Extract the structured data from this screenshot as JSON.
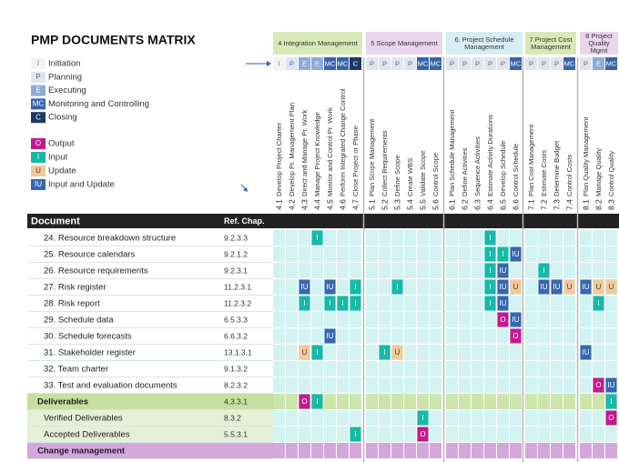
{
  "header": {
    "title": "PMP DOCUMENTS MATRIX"
  },
  "process_legend": [
    {
      "code": "I",
      "label": "Initiation",
      "color": "#f3f3f3",
      "text_color": "#777"
    },
    {
      "code": "P",
      "label": "Planning",
      "color": "#dfe4ef",
      "text_color": "#667"
    },
    {
      "code": "E",
      "label": "Executing",
      "color": "#8eaad8",
      "text_color": "#ffffff"
    },
    {
      "code": "MC",
      "label": "Monitoring and Controlling",
      "color": "#3664aa",
      "text_color": "#ffffff"
    },
    {
      "code": "C",
      "label": "Closing",
      "color": "#1f3864",
      "text_color": "#ffffff"
    }
  ],
  "io_legend": [
    {
      "code": "O",
      "label": "Output",
      "color": "#c21a90",
      "text_color": "#ffffff"
    },
    {
      "code": "I",
      "label": "Input",
      "color": "#17b9a8",
      "text_color": "#ffffff"
    },
    {
      "code": "U",
      "label": "Update",
      "color": "#f3c99b",
      "text_color": "#444"
    },
    {
      "code": "IU",
      "label": "Input and Update",
      "color": "#3667b0",
      "text_color": "#ffffff"
    }
  ],
  "groups": [
    {
      "title": "4 Integration Management",
      "color": "#d8e9b8",
      "processes": [
        {
          "id": "4.1",
          "name": "Develop Project Charter",
          "group": "I"
        },
        {
          "id": "4.2",
          "name": "Develop Pr. Management Plan",
          "group": "P"
        },
        {
          "id": "4.3",
          "name": "Direct and Manage Pr. Work",
          "group": "E"
        },
        {
          "id": "4.4",
          "name": "Manage Project Knowledge",
          "group": "E"
        },
        {
          "id": "4.5",
          "name": "Monitor and Control Pr. Work",
          "group": "MC"
        },
        {
          "id": "4.6",
          "name": "Perform Integrated Change Control",
          "group": "MC"
        },
        {
          "id": "4.7",
          "name": "Close Project or Phase",
          "group": "C"
        }
      ]
    },
    {
      "title": "5 Scope Management",
      "color": "#e9d5ed",
      "processes": [
        {
          "id": "5.1",
          "name": "Plan Scope Management",
          "group": "P"
        },
        {
          "id": "5.2",
          "name": "Collect Requirements",
          "group": "P"
        },
        {
          "id": "5.3",
          "name": "Define Scope",
          "group": "P"
        },
        {
          "id": "5.4",
          "name": "Create WBS",
          "group": "P"
        },
        {
          "id": "5.5",
          "name": "Validate Scope",
          "group": "MC"
        },
        {
          "id": "5.6",
          "name": "Control Scope",
          "group": "MC"
        }
      ]
    },
    {
      "title": "6. Project Schedule Management",
      "color": "#d5eef3",
      "processes": [
        {
          "id": "6.1",
          "name": "Plan Schedule Management",
          "group": "P"
        },
        {
          "id": "6.2",
          "name": "Define Activities",
          "group": "P"
        },
        {
          "id": "6.3",
          "name": "Sequence Activities",
          "group": "P"
        },
        {
          "id": "6.4",
          "name": "Estimate Activity Durations",
          "group": "P"
        },
        {
          "id": "6.5",
          "name": "Develop Schedule",
          "group": "P"
        },
        {
          "id": "6.6",
          "name": "Control Schedule",
          "group": "MC"
        }
      ]
    },
    {
      "title": "7 Project Cost Management",
      "color": "#d8e9b8",
      "processes": [
        {
          "id": "7.1",
          "name": "Plan Cost Management",
          "group": "P"
        },
        {
          "id": "7.2",
          "name": "Estimate Costs",
          "group": "P"
        },
        {
          "id": "7.3",
          "name": "Determine Budget",
          "group": "P"
        },
        {
          "id": "7.4",
          "name": "Control Costs",
          "group": "MC"
        }
      ]
    },
    {
      "title": "8 Project Quality Mgmt",
      "color": "#e9d5ed",
      "processes": [
        {
          "id": "8.1",
          "name": "Plan Quality Management",
          "group": "P"
        },
        {
          "id": "8.2",
          "name": "Manage Quality",
          "group": "E"
        },
        {
          "id": "8.3",
          "name": "Control Quality",
          "group": "MC"
        }
      ]
    }
  ],
  "table": {
    "headers": [
      "Document",
      "Ref. Chap."
    ],
    "rows": [
      {
        "document": "24. Resource breakdown structure",
        "ref": "9.2.3.3",
        "level": "item",
        "cells": [
          null,
          null,
          null,
          "I",
          null,
          null,
          null,
          null,
          null,
          null,
          null,
          null,
          null,
          null,
          null,
          null,
          "I",
          null,
          null,
          null,
          null,
          null,
          null,
          null,
          null,
          null
        ]
      },
      {
        "document": "25. Resource calendars",
        "ref": "9.2.1.2",
        "level": "item",
        "cells": [
          null,
          null,
          null,
          null,
          null,
          null,
          null,
          null,
          null,
          null,
          null,
          null,
          null,
          null,
          null,
          null,
          "I",
          "I",
          "IU",
          null,
          null,
          null,
          null,
          null,
          null,
          null
        ]
      },
      {
        "document": "26. Resource requirements",
        "ref": "9.2.3.1",
        "level": "item",
        "cells": [
          null,
          null,
          null,
          null,
          null,
          null,
          null,
          null,
          null,
          null,
          null,
          null,
          null,
          null,
          null,
          null,
          "I",
          "IU",
          null,
          null,
          "I",
          null,
          null,
          null,
          null,
          null
        ]
      },
      {
        "document": "27. Risk register",
        "ref": "11.2.3.1",
        "level": "item",
        "cells": [
          null,
          null,
          "IU",
          null,
          "IU",
          null,
          "I",
          null,
          null,
          "I",
          null,
          null,
          null,
          null,
          null,
          null,
          "I",
          "IU",
          "U",
          null,
          "IU",
          "IU",
          "U",
          "IU",
          "U",
          "U"
        ]
      },
      {
        "document": "28. Risk report",
        "ref": "11.2.3.2",
        "level": "item",
        "cells": [
          null,
          null,
          "I",
          null,
          "I",
          "I",
          "I",
          null,
          null,
          null,
          null,
          null,
          null,
          null,
          null,
          null,
          "I",
          "IU",
          null,
          null,
          null,
          null,
          null,
          null,
          "I",
          null
        ]
      },
      {
        "document": "29. Schedule data",
        "ref": "6.5.3.3",
        "level": "item",
        "cells": [
          null,
          null,
          null,
          null,
          null,
          null,
          null,
          null,
          null,
          null,
          null,
          null,
          null,
          null,
          null,
          null,
          null,
          "O",
          "IU",
          null,
          null,
          null,
          null,
          null,
          null,
          null
        ]
      },
      {
        "document": "30. Schedule forecasts",
        "ref": "6.6.3.2",
        "level": "item",
        "cells": [
          null,
          null,
          null,
          null,
          "IU",
          null,
          null,
          null,
          null,
          null,
          null,
          null,
          null,
          null,
          null,
          null,
          null,
          null,
          "O",
          null,
          null,
          null,
          null,
          null,
          null,
          null
        ]
      },
      {
        "document": "31. Stakeholder register",
        "ref": "13.1.3.1",
        "level": "item",
        "cells": [
          null,
          null,
          "U",
          "I",
          null,
          null,
          null,
          null,
          "I",
          "U",
          null,
          null,
          null,
          null,
          null,
          null,
          null,
          null,
          null,
          null,
          null,
          null,
          null,
          "IU",
          null,
          null
        ]
      },
      {
        "document": "32. Team charter",
        "ref": "9.1.3.2",
        "level": "item",
        "cells": [
          null,
          null,
          null,
          null,
          null,
          null,
          null,
          null,
          null,
          null,
          null,
          null,
          null,
          null,
          null,
          null,
          null,
          null,
          null,
          null,
          null,
          null,
          null,
          null,
          null,
          null
        ]
      },
      {
        "document": "33. Test and evaluation documents",
        "ref": "8.2.3.2",
        "level": "item",
        "cells": [
          null,
          null,
          null,
          null,
          null,
          null,
          null,
          null,
          null,
          null,
          null,
          null,
          null,
          null,
          null,
          null,
          null,
          null,
          null,
          null,
          null,
          null,
          null,
          null,
          "O",
          "IU"
        ]
      },
      {
        "document": "Deliverables",
        "ref": "4.3.3.1",
        "level": "deliverable",
        "cells": [
          null,
          null,
          "O",
          "I",
          null,
          null,
          null,
          null,
          null,
          null,
          null,
          null,
          null,
          null,
          null,
          null,
          null,
          null,
          null,
          null,
          null,
          null,
          null,
          null,
          null,
          "I"
        ]
      },
      {
        "document": "Verified Deliverables",
        "ref": "8.3.2",
        "level": "sub",
        "cells": [
          null,
          null,
          null,
          null,
          null,
          null,
          null,
          null,
          null,
          null,
          null,
          "I",
          null,
          null,
          null,
          null,
          null,
          null,
          null,
          null,
          null,
          null,
          null,
          null,
          null,
          "O"
        ]
      },
      {
        "document": "Accepted Deliverables",
        "ref": "5.5.3.1",
        "level": "sub",
        "cells": [
          null,
          null,
          null,
          null,
          null,
          null,
          "I",
          null,
          null,
          null,
          null,
          "O",
          null,
          null,
          null,
          null,
          null,
          null,
          null,
          null,
          null,
          null,
          null,
          null,
          null,
          null
        ]
      },
      {
        "document": "Change management",
        "level": "section",
        "cells": []
      }
    ]
  }
}
